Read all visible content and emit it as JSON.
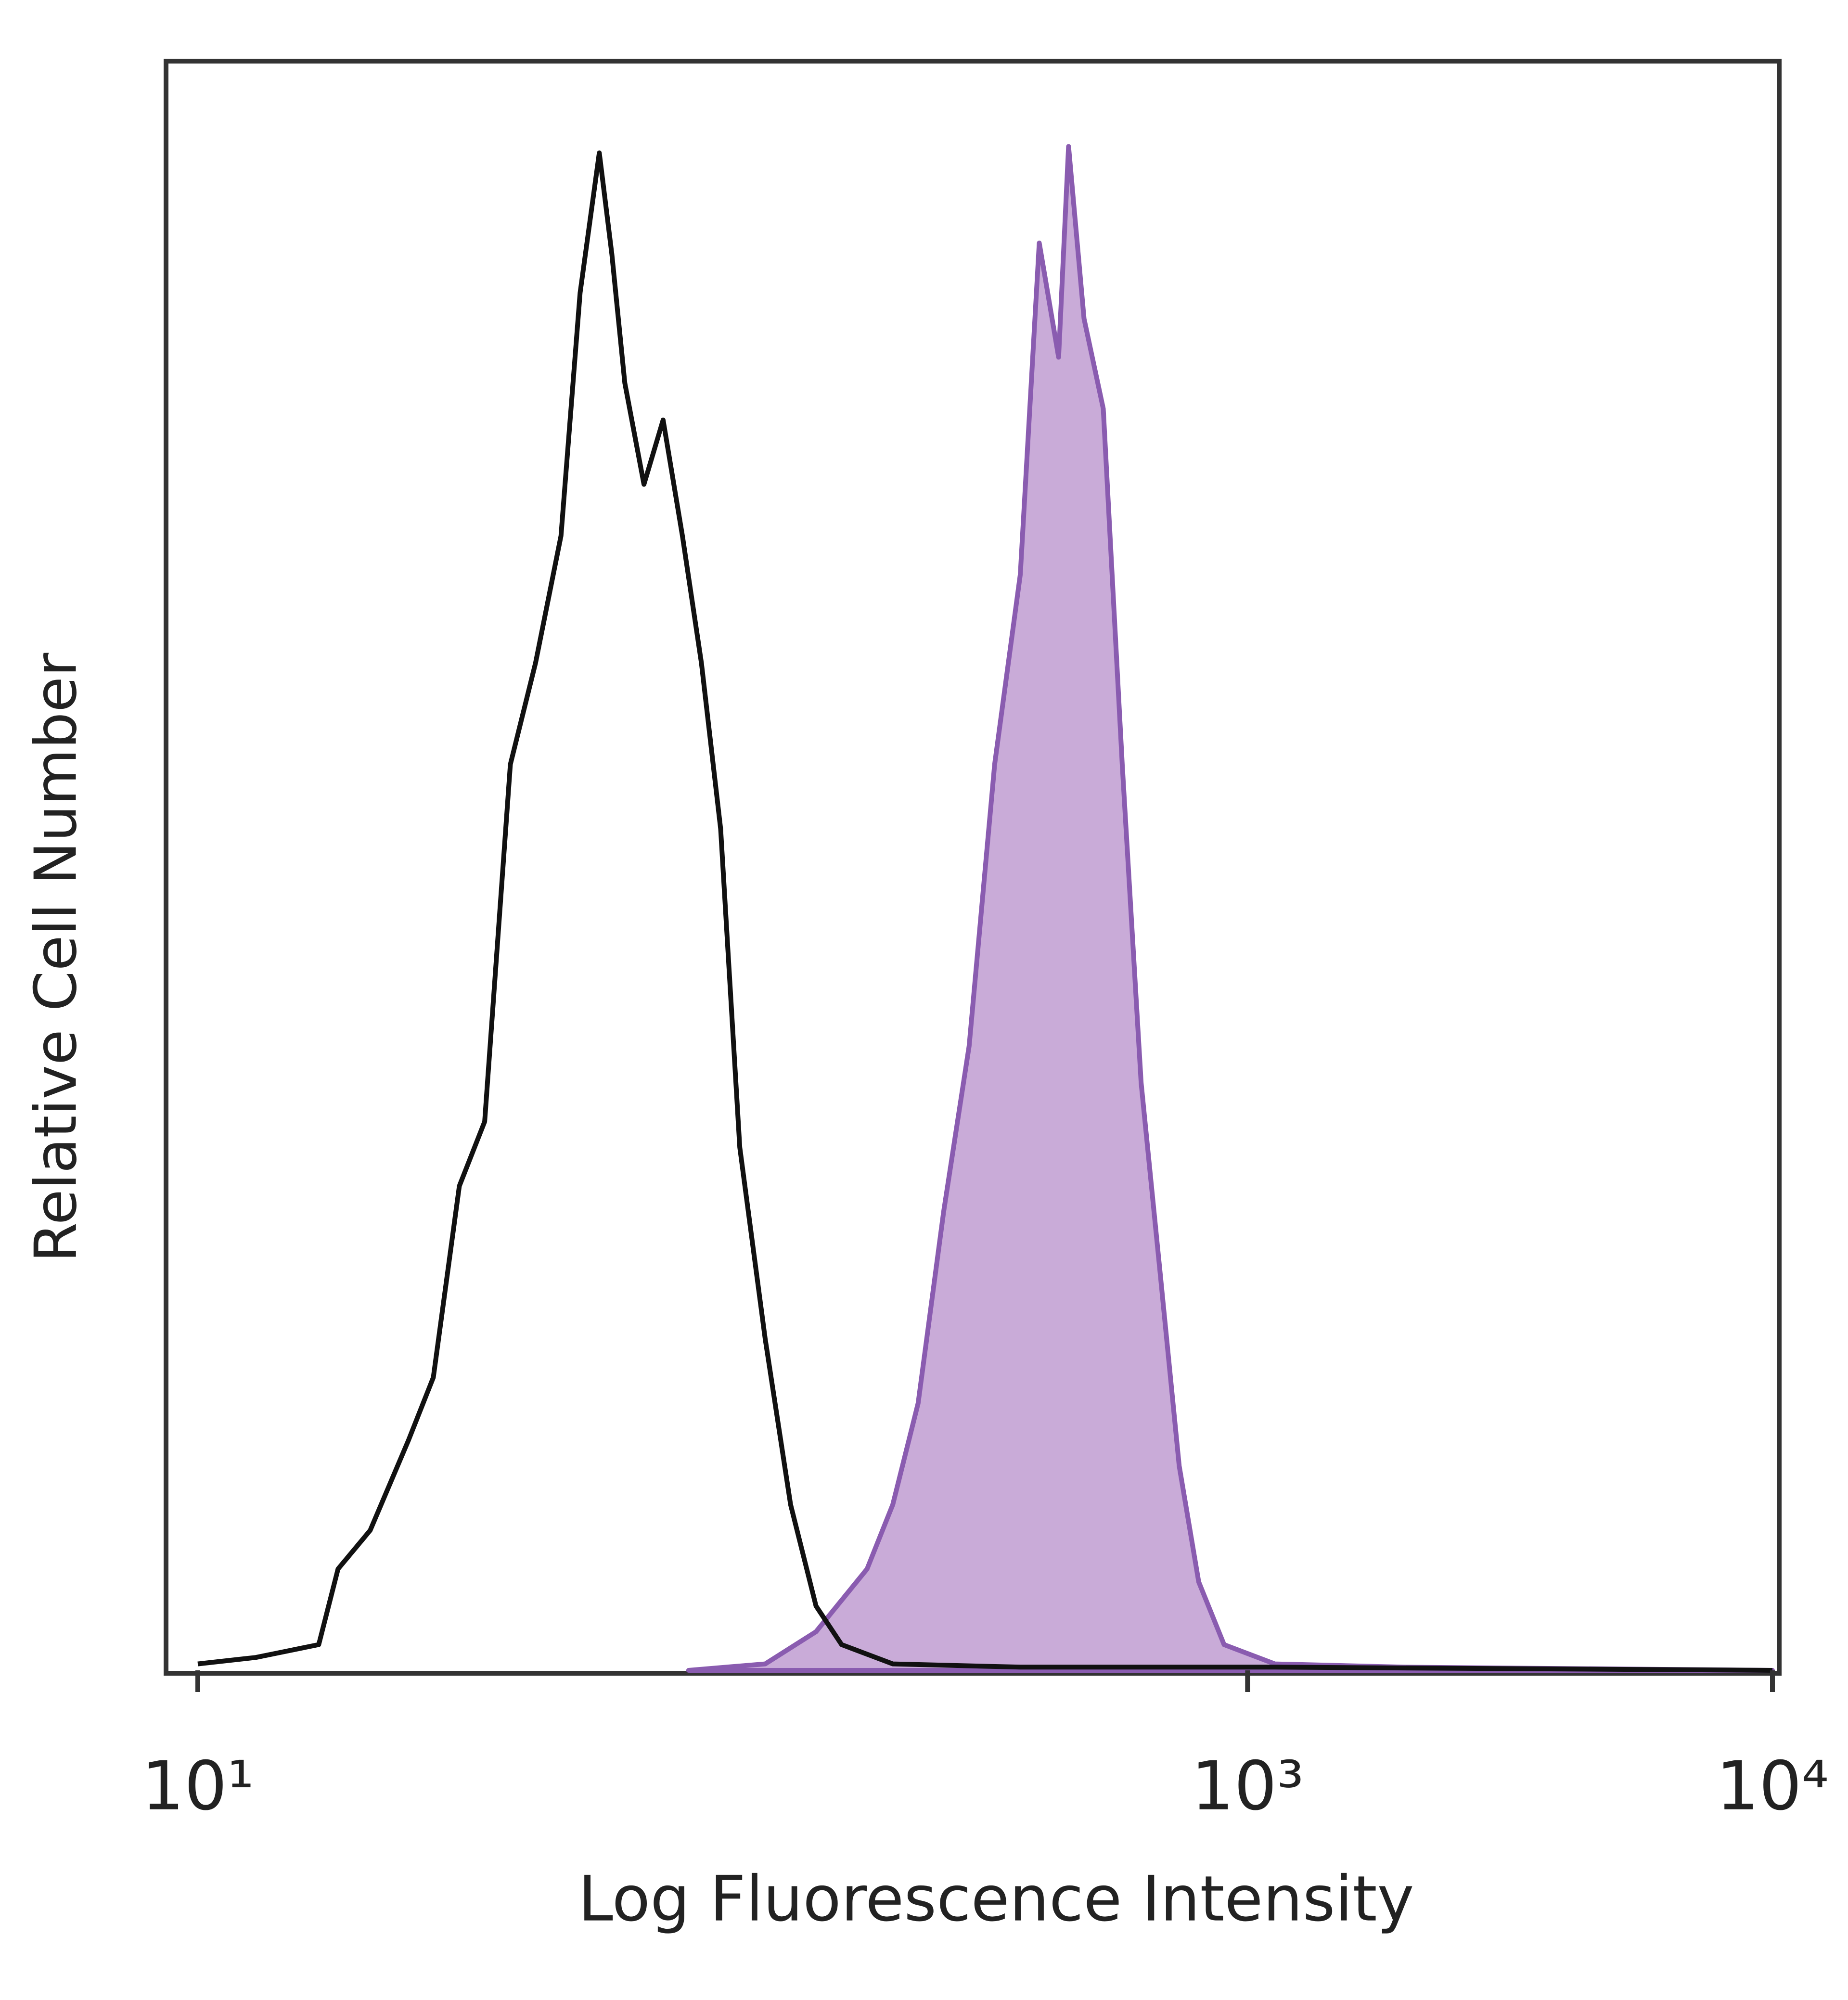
{
  "chart_data": {
    "type": "histogram-overlay",
    "xlabel": "Log Fluorescence Intensity",
    "ylabel": "Relative Cell Number",
    "xscale": "log",
    "xlim": [
      10,
      10000
    ],
    "ylim": [
      0,
      100
    ],
    "xticks": [
      {
        "value": 10,
        "label": "10¹"
      },
      {
        "value": 1000,
        "label": "10³"
      },
      {
        "value": 10000,
        "label": "10⁴"
      }
    ],
    "series": [
      {
        "color": "#111111",
        "filled": false,
        "x": [
          10,
          12.9,
          17.0,
          18.5,
          21.3,
          25.2,
          28.1,
          31.5,
          35.2,
          39.4,
          44.0,
          49.2,
          53.5,
          58.2,
          61.5,
          65.1,
          70.8,
          77.0,
          83.8,
          91.1,
          99.1,
          107.8,
          120.5,
          134.7,
          150.6,
          168.5,
          210.9,
          369,
          1127,
          10000
        ],
        "values": [
          0.4,
          0.8,
          1.6,
          6.3,
          8.7,
          14.3,
          18.2,
          30.1,
          34.1,
          56.3,
          62.6,
          70.5,
          85.6,
          94.3,
          88,
          80,
          73.7,
          77.7,
          70.5,
          62.6,
          52.3,
          32.5,
          20.6,
          10.3,
          4,
          1.6,
          0.4,
          0.2,
          0.2,
          0
        ]
      },
      {
        "color": "#8a5cb0",
        "fill": "#c9abd8",
        "filled": true,
        "x": [
          86.1,
          120.5,
          150.6,
          188.4,
          210.9,
          235.7,
          263.6,
          294.8,
          329.7,
          369,
          401,
          436.5,
          456,
          488,
          531,
          577,
          627,
          682,
          741,
          807,
          902,
          1127,
          1972,
          10000
        ],
        "values": [
          0,
          0.4,
          2.4,
          6.3,
          10.3,
          16.6,
          28.5,
          38.8,
          56.3,
          68.1,
          88.7,
          81.6,
          94.7,
          84,
          78.4,
          56.3,
          36.5,
          24.6,
          12.7,
          5.5,
          1.6,
          0.4,
          0.2,
          0
        ]
      }
    ]
  }
}
